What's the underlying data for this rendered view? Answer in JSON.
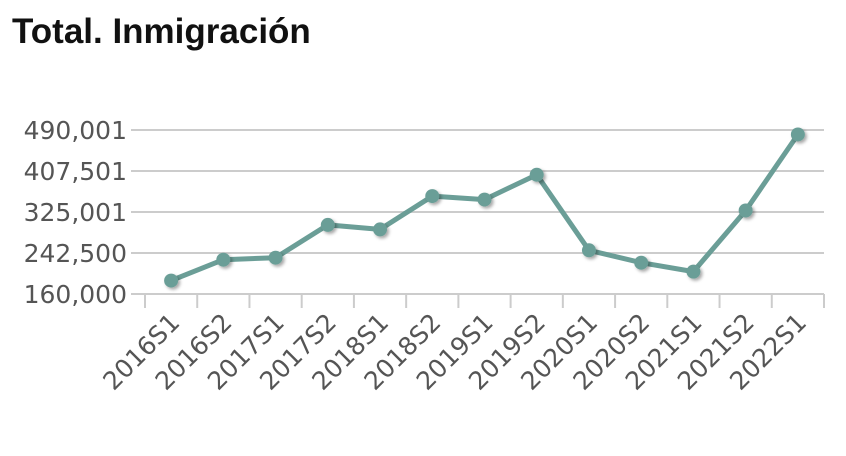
{
  "chart_data": {
    "type": "line",
    "title": "Total. Inmigración",
    "xlabel": "",
    "ylabel": "",
    "categories": [
      "2016S1",
      "2016S2",
      "2017S1",
      "2017S2",
      "2018S1",
      "2018S2",
      "2019S1",
      "2019S2",
      "2020S1",
      "2020S2",
      "2021S1",
      "2021S2",
      "2022S1"
    ],
    "series": [
      {
        "values": [
          187000,
          229000,
          233000,
          299000,
          290000,
          357000,
          350000,
          400000,
          248000,
          223000,
          205000,
          328000,
          481000
        ]
      }
    ],
    "y_ticks": [
      "490,001",
      "407,501",
      "325,001",
      "242,500",
      "160,000"
    ],
    "ylim": [
      160000,
      490001
    ],
    "grid": true,
    "legend": "none",
    "line_color": "#6b9e97",
    "grid_color": "#cccccc"
  }
}
